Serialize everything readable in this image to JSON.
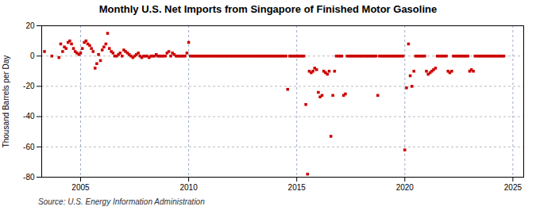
{
  "chart_data": {
    "type": "scatter",
    "title": "Monthly U.S. Net Imports from Singapore of Finished Motor Gasoline",
    "ylabel": "Thousand Barrels per Day",
    "source": "Source: U.S. Energy Information Administration",
    "color": "#cc0000",
    "marker": "square",
    "grid": true,
    "xlim": [
      2003.2,
      2025.5
    ],
    "xticks": [
      2005,
      2010,
      2015,
      2020,
      2025
    ],
    "ylim": [
      -80,
      20
    ],
    "yticks": [
      -80,
      -60,
      -40,
      -20,
      0,
      20
    ],
    "x": [
      2003.33,
      2003.67,
      2004.0,
      2004.08,
      2004.17,
      2004.25,
      2004.33,
      2004.42,
      2004.5,
      2004.58,
      2004.67,
      2004.75,
      2004.83,
      2004.92,
      2005.0,
      2005.08,
      2005.17,
      2005.25,
      2005.33,
      2005.42,
      2005.5,
      2005.58,
      2005.67,
      2005.75,
      2005.83,
      2005.92,
      2006.0,
      2006.08,
      2006.17,
      2006.25,
      2006.33,
      2006.42,
      2006.5,
      2006.58,
      2006.67,
      2006.75,
      2006.83,
      2006.92,
      2007.0,
      2007.08,
      2007.17,
      2007.25,
      2007.33,
      2007.42,
      2007.5,
      2007.58,
      2007.67,
      2007.75,
      2007.83,
      2007.92,
      2008.0,
      2008.08,
      2008.17,
      2008.25,
      2008.33,
      2008.42,
      2008.5,
      2008.58,
      2008.67,
      2008.75,
      2008.83,
      2008.92,
      2009.0,
      2009.08,
      2009.17,
      2009.25,
      2009.33,
      2009.42,
      2009.5,
      2009.58,
      2009.67,
      2009.75,
      2009.83,
      2009.92,
      2010.0,
      2010.08,
      2010.17,
      2010.25,
      2010.33,
      2010.42,
      2010.5,
      2010.58,
      2010.67,
      2010.75,
      2010.83,
      2010.92,
      2011.0,
      2011.08,
      2011.17,
      2011.25,
      2011.33,
      2011.42,
      2011.5,
      2011.58,
      2011.67,
      2011.75,
      2011.83,
      2011.92,
      2012.0,
      2012.08,
      2012.17,
      2012.25,
      2012.33,
      2012.42,
      2012.5,
      2012.58,
      2012.67,
      2012.75,
      2012.83,
      2012.92,
      2013.0,
      2013.08,
      2013.17,
      2013.25,
      2013.33,
      2013.42,
      2013.5,
      2013.58,
      2013.67,
      2013.75,
      2013.83,
      2013.92,
      2014.0,
      2014.08,
      2014.17,
      2014.25,
      2014.33,
      2014.42,
      2014.5,
      2014.58,
      2014.67,
      2014.75,
      2014.83,
      2014.92,
      2015.0,
      2015.08,
      2015.17,
      2015.25,
      2015.33,
      2015.42,
      2015.5,
      2015.58,
      2015.67,
      2015.75,
      2015.83,
      2015.92,
      2016.0,
      2016.08,
      2016.17,
      2016.25,
      2016.33,
      2016.42,
      2016.5,
      2016.58,
      2016.67,
      2016.75,
      2016.83,
      2016.92,
      2017.0,
      2017.08,
      2017.17,
      2017.25,
      2017.33,
      2017.42,
      2017.5,
      2017.58,
      2017.67,
      2017.75,
      2017.83,
      2017.92,
      2018.0,
      2018.08,
      2018.17,
      2018.25,
      2018.33,
      2018.42,
      2018.5,
      2018.58,
      2018.67,
      2018.75,
      2018.83,
      2018.92,
      2019.0,
      2019.08,
      2019.17,
      2019.25,
      2019.33,
      2019.42,
      2019.5,
      2019.58,
      2019.67,
      2019.75,
      2019.83,
      2019.92,
      2020.0,
      2020.08,
      2020.17,
      2020.25,
      2020.33,
      2020.42,
      2020.5,
      2020.58,
      2020.67,
      2020.75,
      2020.83,
      2020.92,
      2021.0,
      2021.08,
      2021.17,
      2021.25,
      2021.33,
      2021.42,
      2021.5,
      2021.58,
      2021.67,
      2021.75,
      2021.83,
      2021.92,
      2022.0,
      2022.08,
      2022.17,
      2022.25,
      2022.33,
      2022.42,
      2022.5,
      2022.58,
      2022.67,
      2022.75,
      2022.83,
      2022.92,
      2023.0,
      2023.08,
      2023.17,
      2023.25,
      2023.33,
      2023.42,
      2023.5,
      2023.58,
      2023.67,
      2023.75,
      2023.83,
      2023.92,
      2024.0,
      2024.08,
      2024.17,
      2024.25,
      2024.33,
      2024.42,
      2024.5,
      2024.58
    ],
    "values": [
      3,
      0,
      -1,
      8,
      3,
      6,
      5,
      9,
      10,
      8,
      5,
      3,
      2,
      1,
      2,
      5,
      9,
      10,
      8,
      7,
      5,
      3,
      -8,
      -5,
      1,
      -3,
      4,
      6,
      8,
      15,
      5,
      3,
      2,
      0,
      0,
      1,
      2,
      0,
      4,
      3,
      2,
      1,
      0,
      -1,
      0,
      1,
      2,
      0,
      -1,
      0,
      0,
      0,
      -1,
      0,
      0,
      0,
      1,
      0,
      0,
      0,
      0,
      0,
      2,
      3,
      0,
      2,
      1,
      0,
      0,
      0,
      0,
      0,
      0,
      2,
      9,
      0,
      0,
      0,
      0,
      0,
      0,
      0,
      0,
      0,
      0,
      0,
      0,
      0,
      0,
      0,
      0,
      0,
      0,
      0,
      0,
      0,
      0,
      0,
      0,
      0,
      0,
      0,
      0,
      0,
      0,
      0,
      0,
      0,
      0,
      0,
      0,
      0,
      0,
      0,
      0,
      0,
      0,
      0,
      0,
      0,
      0,
      0,
      0,
      0,
      0,
      0,
      0,
      0,
      0,
      -22,
      0,
      0,
      0,
      0,
      0,
      0,
      0,
      0,
      0,
      -32,
      -78,
      -10,
      -11,
      -10,
      -8,
      -9,
      -24,
      -27,
      -26,
      -10,
      -11,
      -12,
      -10,
      -53,
      -26,
      -10,
      0,
      0,
      0,
      0,
      -26,
      -25,
      0,
      0,
      0,
      0,
      0,
      0,
      0,
      0,
      0,
      0,
      0,
      0,
      0,
      0,
      0,
      0,
      0,
      -26,
      0,
      0,
      0,
      0,
      0,
      0,
      0,
      0,
      0,
      0,
      0,
      0,
      0,
      0,
      -62,
      -21,
      8,
      -13,
      -20,
      -10,
      0,
      0,
      0,
      0,
      0,
      0,
      -10,
      -12,
      -11,
      -10,
      -9,
      -8,
      0,
      0,
      0,
      0,
      0,
      0,
      -10,
      -11,
      -10,
      0,
      0,
      0,
      0,
      0,
      0,
      0,
      0,
      0,
      -10,
      -9,
      -10,
      0,
      0,
      0,
      0,
      0,
      0,
      0,
      0,
      0,
      0,
      0,
      0,
      0,
      0,
      0,
      0,
      0
    ]
  }
}
